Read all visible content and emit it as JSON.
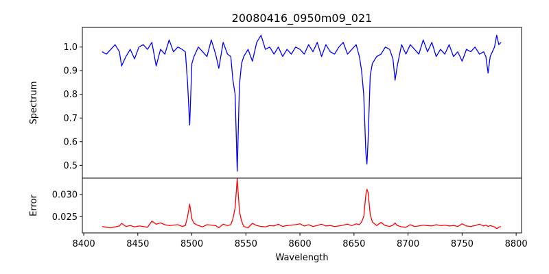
{
  "chart_data": {
    "type": "line",
    "title": "20080416_0950m09_021",
    "xlabel": "Wavelength",
    "xlim": [
      8398.7,
      8805
    ],
    "xticks": [
      8400,
      8450,
      8500,
      8550,
      8600,
      8650,
      8700,
      8750,
      8800
    ],
    "grid": false,
    "panels": [
      {
        "name": "spectrum",
        "ylabel": "Spectrum",
        "ylim": [
          0.446,
          1.083
        ],
        "yticks": [
          "0.5",
          "0.6",
          "0.7",
          "0.8",
          "0.9",
          "1.0"
        ],
        "color": "#0000ff"
      },
      {
        "name": "error",
        "ylabel": "Error",
        "ylim": [
          0.02134,
          0.0337
        ],
        "yticks": [
          "0.025",
          "0.030"
        ],
        "color": "#ff0000"
      }
    ],
    "points_columns": [
      "wavelength",
      "spectrum",
      "error"
    ],
    "points": [
      [
        8417,
        0.98,
        0.0228
      ],
      [
        8421,
        0.97,
        0.0226
      ],
      [
        8425,
        0.99,
        0.0225
      ],
      [
        8429,
        1.01,
        0.0227
      ],
      [
        8433,
        0.98,
        0.0229
      ],
      [
        8435,
        0.92,
        0.0235
      ],
      [
        8439,
        0.96,
        0.0228
      ],
      [
        8443,
        0.99,
        0.023
      ],
      [
        8447,
        0.95,
        0.0227
      ],
      [
        8451,
        1.0,
        0.0229
      ],
      [
        8455,
        1.01,
        0.0228
      ],
      [
        8459,
        0.99,
        0.0226
      ],
      [
        8463,
        1.02,
        0.024
      ],
      [
        8467,
        0.92,
        0.0233
      ],
      [
        8471,
        0.99,
        0.0236
      ],
      [
        8475,
        0.97,
        0.0232
      ],
      [
        8479,
        1.03,
        0.023
      ],
      [
        8483,
        0.98,
        0.0231
      ],
      [
        8487,
        1.0,
        0.0232
      ],
      [
        8491,
        0.99,
        0.0228
      ],
      [
        8494,
        0.98,
        0.023
      ],
      [
        8496,
        0.85,
        0.025
      ],
      [
        8498,
        0.67,
        0.0278
      ],
      [
        8500,
        0.93,
        0.0245
      ],
      [
        8502,
        0.96,
        0.0235
      ],
      [
        8506,
        1.0,
        0.023
      ],
      [
        8510,
        0.98,
        0.0227
      ],
      [
        8514,
        0.96,
        0.0232
      ],
      [
        8518,
        1.03,
        0.0231
      ],
      [
        8522,
        0.97,
        0.023
      ],
      [
        8525,
        0.91,
        0.0225
      ],
      [
        8529,
        1.02,
        0.0233
      ],
      [
        8533,
        0.97,
        0.023
      ],
      [
        8536,
        0.96,
        0.0232
      ],
      [
        8538,
        0.86,
        0.0245
      ],
      [
        8540,
        0.8,
        0.027
      ],
      [
        8542,
        0.475,
        0.0336
      ],
      [
        8544,
        0.84,
        0.0262
      ],
      [
        8546,
        0.93,
        0.024
      ],
      [
        8548,
        0.96,
        0.0228
      ],
      [
        8552,
        0.99,
        0.0225
      ],
      [
        8556,
        0.94,
        0.0235
      ],
      [
        8560,
        1.02,
        0.023
      ],
      [
        8564,
        1.05,
        0.0228
      ],
      [
        8568,
        0.99,
        0.0227
      ],
      [
        8572,
        1.0,
        0.023
      ],
      [
        8576,
        0.97,
        0.0229
      ],
      [
        8580,
        1.0,
        0.0233
      ],
      [
        8584,
        0.96,
        0.0228
      ],
      [
        8588,
        0.99,
        0.023
      ],
      [
        8592,
        0.97,
        0.0231
      ],
      [
        8596,
        1.0,
        0.0232
      ],
      [
        8600,
        0.99,
        0.0234
      ],
      [
        8604,
        0.97,
        0.0229
      ],
      [
        8608,
        1.01,
        0.0232
      ],
      [
        8612,
        0.98,
        0.0228
      ],
      [
        8616,
        1.02,
        0.023
      ],
      [
        8620,
        0.96,
        0.0233
      ],
      [
        8624,
        1.01,
        0.0229
      ],
      [
        8628,
        0.98,
        0.023
      ],
      [
        8632,
        0.97,
        0.0228
      ],
      [
        8636,
        1.0,
        0.0229
      ],
      [
        8640,
        1.02,
        0.0231
      ],
      [
        8644,
        0.97,
        0.0233
      ],
      [
        8648,
        0.99,
        0.023
      ],
      [
        8652,
        1.01,
        0.0234
      ],
      [
        8655,
        0.96,
        0.0232
      ],
      [
        8657,
        0.9,
        0.0238
      ],
      [
        8659,
        0.8,
        0.025
      ],
      [
        8661,
        0.55,
        0.03
      ],
      [
        8662,
        0.505,
        0.0312
      ],
      [
        8663,
        0.6,
        0.0305
      ],
      [
        8665,
        0.88,
        0.0255
      ],
      [
        8667,
        0.93,
        0.0238
      ],
      [
        8671,
        0.96,
        0.023
      ],
      [
        8675,
        0.97,
        0.0237
      ],
      [
        8679,
        1.0,
        0.023
      ],
      [
        8683,
        0.99,
        0.0228
      ],
      [
        8686,
        0.95,
        0.0231
      ],
      [
        8688,
        0.86,
        0.0236
      ],
      [
        8690,
        0.92,
        0.023
      ],
      [
        8694,
        1.01,
        0.0227
      ],
      [
        8698,
        0.97,
        0.0226
      ],
      [
        8702,
        1.01,
        0.0232
      ],
      [
        8706,
        0.99,
        0.0228
      ],
      [
        8710,
        0.97,
        0.0229
      ],
      [
        8714,
        1.03,
        0.0231
      ],
      [
        8718,
        0.98,
        0.023
      ],
      [
        8722,
        1.02,
        0.0229
      ],
      [
        8726,
        0.96,
        0.0232
      ],
      [
        8730,
        0.99,
        0.023
      ],
      [
        8734,
        0.97,
        0.0231
      ],
      [
        8738,
        1.01,
        0.0229
      ],
      [
        8742,
        0.96,
        0.023
      ],
      [
        8746,
        0.98,
        0.0228
      ],
      [
        8750,
        0.94,
        0.0234
      ],
      [
        8754,
        0.99,
        0.0229
      ],
      [
        8758,
        0.98,
        0.0228
      ],
      [
        8762,
        1.0,
        0.023
      ],
      [
        8766,
        0.97,
        0.0233
      ],
      [
        8770,
        0.98,
        0.0229
      ],
      [
        8772,
        0.96,
        0.0231
      ],
      [
        8774,
        0.89,
        0.0228
      ],
      [
        8776,
        0.96,
        0.023
      ],
      [
        8780,
        1.0,
        0.0227
      ],
      [
        8782,
        1.05,
        0.0223
      ],
      [
        8784,
        1.01,
        0.0226
      ],
      [
        8786,
        1.02,
        0.0228
      ]
    ]
  }
}
